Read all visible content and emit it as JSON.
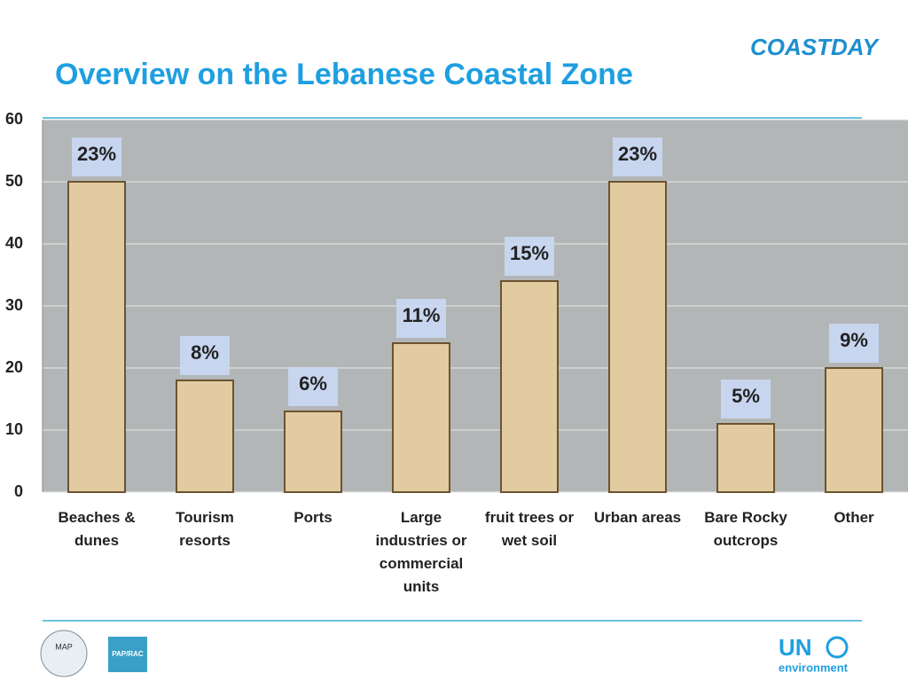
{
  "chart_data": {
    "type": "bar",
    "title": "Overview on the Lebanese Coastal Zone",
    "categories": [
      "Beaches & dunes",
      "Tourism resorts",
      "Ports",
      "Large industries or commercial units",
      "fruit trees or wet soil",
      "Urban areas",
      "Bare Rocky outcrops",
      "Other"
    ],
    "values": [
      50,
      18,
      13,
      24,
      34,
      50,
      11,
      20
    ],
    "annotations": [
      "23%",
      "8%",
      "6%",
      "11%",
      "15%",
      "23%",
      "5%",
      "9%"
    ],
    "color": "#e2cba0",
    "ylim": [
      0,
      60
    ],
    "yticks": [
      0,
      10,
      20,
      30,
      40,
      50,
      60
    ],
    "grid": true
  },
  "logos": {
    "top_right": "COASTDAY",
    "bottom_left_1": "MAP",
    "bottom_left_2": "PAP/RAC",
    "bottom_right_1": "UN",
    "bottom_right_2": "environment"
  }
}
